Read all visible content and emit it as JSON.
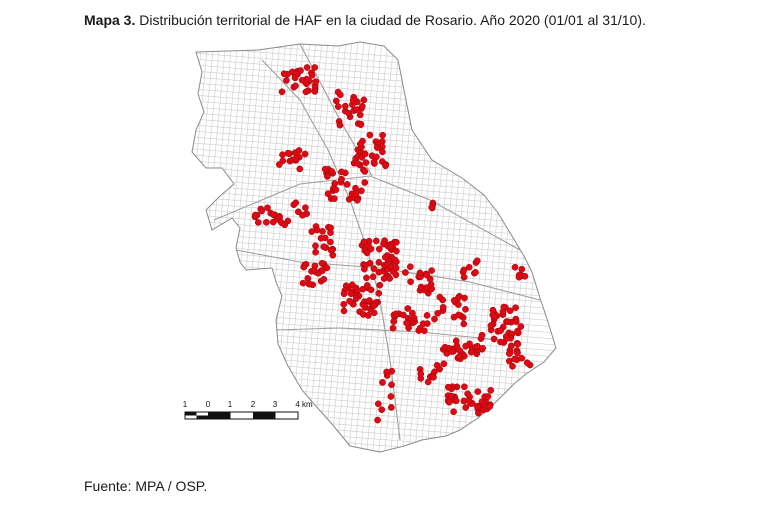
{
  "figure": {
    "caption_bold": "Mapa 3.",
    "caption_text": " Distribución territorial de HAF en la ciudad de Rosario. Año 2020 (01/01 al 31/10).",
    "source": "Fuente: MPA / OSP."
  },
  "scale_bar": {
    "labels": [
      "1",
      "0",
      "1",
      "2",
      "3",
      "4 km"
    ]
  },
  "colors": {
    "point": "#dd0a14",
    "point_stroke": "#a00008",
    "streets": "#c9c9c9",
    "boundary": "#8a8a8a"
  }
}
